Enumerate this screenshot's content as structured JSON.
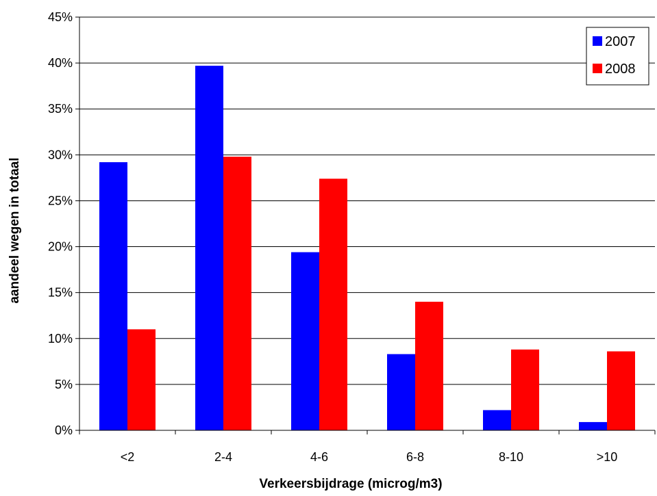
{
  "chart_data": {
    "type": "bar",
    "title": "",
    "xlabel": "Verkeersbijdrage (microg/m3)",
    "ylabel": "aandeel wegen in totaal",
    "categories": [
      "<2",
      "2-4",
      "4-6",
      "6-8",
      "8-10",
      ">10"
    ],
    "series": [
      {
        "name": "2007",
        "color": "#0000ff",
        "values": [
          29.2,
          39.7,
          19.4,
          8.3,
          2.2,
          0.9
        ]
      },
      {
        "name": "2008",
        "color": "#ff0000",
        "values": [
          11.0,
          29.8,
          27.4,
          14.0,
          8.8,
          8.6
        ]
      }
    ],
    "ylim": [
      0,
      45
    ],
    "yticks": [
      0,
      5,
      10,
      15,
      20,
      25,
      30,
      35,
      40,
      45
    ],
    "ytick_labels": [
      "0%",
      "5%",
      "10%",
      "15%",
      "20%",
      "25%",
      "30%",
      "35%",
      "40%",
      "45%"
    ],
    "grid": true,
    "legend_position": "top-right"
  }
}
